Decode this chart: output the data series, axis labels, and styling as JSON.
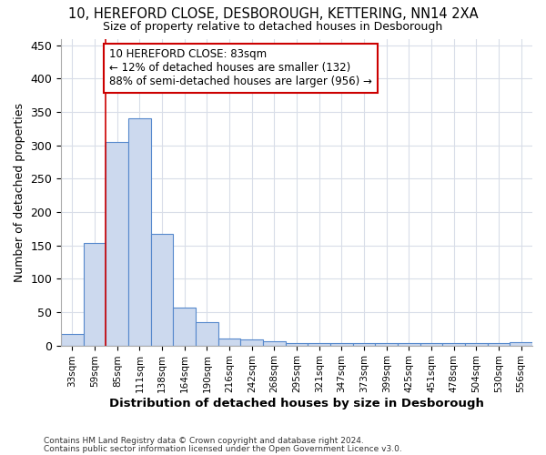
{
  "title1": "10, HEREFORD CLOSE, DESBOROUGH, KETTERING, NN14 2XA",
  "title2": "Size of property relative to detached houses in Desborough",
  "xlabel": "Distribution of detached houses by size in Desborough",
  "ylabel": "Number of detached properties",
  "bar_values": [
    17,
    153,
    305,
    340,
    167,
    57,
    35,
    10,
    9,
    6,
    3,
    3,
    3,
    3,
    3,
    3,
    3,
    3,
    3,
    3,
    5
  ],
  "bar_labels": [
    "33sqm",
    "59sqm",
    "85sqm",
    "111sqm",
    "138sqm",
    "164sqm",
    "190sqm",
    "216sqm",
    "242sqm",
    "268sqm",
    "295sqm",
    "321sqm",
    "347sqm",
    "373sqm",
    "399sqm",
    "425sqm",
    "451sqm",
    "478sqm",
    "504sqm",
    "530sqm",
    "556sqm"
  ],
  "bar_color": "#ccd9ee",
  "bar_edge_color": "#5588cc",
  "grid_color": "#d8dde8",
  "vline_color": "#cc0000",
  "annotation_text": "10 HEREFORD CLOSE: 83sqm\n← 12% of detached houses are smaller (132)\n88% of semi-detached houses are larger (956) →",
  "annotation_box_color": "#ffffff",
  "annotation_box_edge": "#cc0000",
  "footnote1": "Contains HM Land Registry data © Crown copyright and database right 2024.",
  "footnote2": "Contains public sector information licensed under the Open Government Licence v3.0.",
  "ylim": [
    0,
    460
  ],
  "yticks": [
    0,
    50,
    100,
    150,
    200,
    250,
    300,
    350,
    400,
    450
  ],
  "background_color": "#ffffff"
}
